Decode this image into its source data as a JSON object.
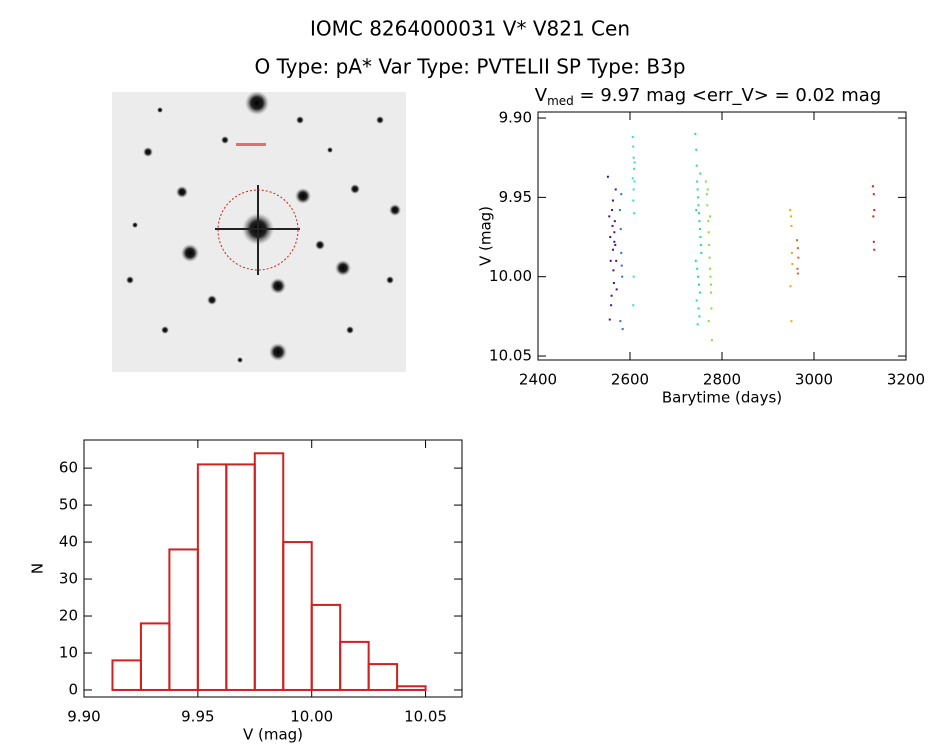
{
  "header": {
    "title": "IOMC 8264000031    V* V821 Cen",
    "subtitle": "O Type: pA*  Var Type: PVTELII  SP Type: B3p"
  },
  "chart_data": [
    {
      "type": "scatter",
      "title": "V",
      "title_subscript": "med",
      "title_rest": " = 9.97 mag <err_V> = 0.02 mag",
      "x_label": "Barytime (days)",
      "y_label": "V (mag)",
      "xlim": [
        2400,
        3200
      ],
      "xticks": [
        2400,
        2600,
        2800,
        3000,
        3200
      ],
      "ylim": [
        9.8962,
        10.0525
      ],
      "y_inverted": true,
      "yticks": [
        {
          "value": 9.9,
          "label": "9.90"
        },
        {
          "value": 9.95,
          "label": "9.95"
        },
        {
          "value": 10.0,
          "label": "10.00"
        },
        {
          "value": 10.05,
          "label": "10.05"
        }
      ],
      "series": [
        {
          "color": "#4b0f7a",
          "x": [
            2552,
            2555,
            2557,
            2558,
            2560,
            2561,
            2562,
            2563,
            2564,
            2565,
            2566,
            2567,
            2568,
            2569,
            2570,
            2556,
            2559,
            2563,
            2566,
            2571
          ],
          "values": [
            9.937,
            9.962,
            9.975,
            9.99,
            10.012,
            9.958,
            9.968,
            9.983,
            9.996,
            10.004,
            9.972,
            9.965,
            9.98,
            9.945,
            9.99,
            10.027,
            10.018,
            9.952,
            9.978,
            10.008
          ]
        },
        {
          "color": "#2f6fd0",
          "x": [
            2578,
            2580,
            2581,
            2582,
            2583,
            2584,
            2579,
            2581
          ],
          "values": [
            9.958,
            9.97,
            9.985,
            9.993,
            10.0,
            10.033,
            10.028,
            9.948
          ]
        },
        {
          "color": "#30d8e8",
          "x": [
            2606,
            2607,
            2608,
            2609,
            2610,
            2608,
            2607,
            2609,
            2606,
            2610,
            2608,
            2607
          ],
          "values": [
            9.912,
            9.918,
            9.925,
            9.932,
            9.94,
            9.945,
            9.952,
            9.96,
            9.938,
            9.928,
            10.0,
            10.018
          ]
        },
        {
          "color": "#20e090",
          "x": [
            2742,
            2744,
            2745,
            2746,
            2747,
            2748,
            2749,
            2750,
            2751,
            2752,
            2753,
            2754,
            2755,
            2743,
            2746,
            2748,
            2750,
            2752,
            2745,
            2749,
            2751,
            2747,
            2753,
            2744
          ],
          "values": [
            9.91,
            9.92,
            9.93,
            9.94,
            9.945,
            9.95,
            9.955,
            9.96,
            9.965,
            9.97,
            9.975,
            9.98,
            9.985,
            9.99,
            9.995,
            10.0,
            10.005,
            10.01,
            10.015,
            10.02,
            10.025,
            10.03,
            9.935,
            9.958
          ]
        },
        {
          "color": "#80e040",
          "x": [
            2765,
            2767,
            2768,
            2770,
            2771,
            2772,
            2773,
            2774,
            2775,
            2776,
            2777,
            2778,
            2769,
            2771,
            2774,
            2776
          ],
          "values": [
            9.94,
            9.948,
            9.955,
            9.965,
            9.972,
            9.98,
            9.988,
            9.995,
            10.0,
            10.01,
            10.02,
            10.04,
            9.945,
            10.028,
            9.962,
            10.005
          ]
        },
        {
          "color": "#e8b000",
          "x": [
            2948,
            2950,
            2951,
            2952,
            2953,
            2949,
            2951
          ],
          "values": [
            9.958,
            9.962,
            9.968,
            9.985,
            9.992,
            10.006,
            10.028
          ]
        },
        {
          "color": "#e06020",
          "x": [
            2963,
            2965,
            2966,
            2964,
            2965
          ],
          "values": [
            9.977,
            9.982,
            9.988,
            9.995,
            9.998
          ]
        },
        {
          "color": "#d02020",
          "x": [
            3128,
            3130,
            3131,
            3129,
            3130,
            3131
          ],
          "values": [
            9.943,
            9.948,
            9.958,
            9.962,
            9.978,
            9.983
          ]
        }
      ]
    },
    {
      "type": "histogram",
      "x_label": "V (mag)",
      "y_label": "N",
      "color": "#d02020",
      "bins": [
        9.9125,
        9.925,
        9.9375,
        9.95,
        9.9625,
        9.975,
        9.9875,
        10.0,
        10.0125,
        10.025,
        10.0375,
        10.05
      ],
      "values": [
        8,
        18,
        38,
        61,
        61,
        64,
        40,
        23,
        13,
        7,
        1
      ],
      "xlim": [
        9.9,
        10.066
      ],
      "xticks": [
        {
          "value": 9.9,
          "label": "9.90"
        },
        {
          "value": 9.95,
          "label": "9.95"
        },
        {
          "value": 10.0,
          "label": "10.00"
        },
        {
          "value": 10.05,
          "label": "10.05"
        }
      ],
      "ylim": [
        -1.9,
        67.6
      ],
      "yticks": [
        0,
        10,
        20,
        30,
        40,
        50,
        60
      ]
    }
  ]
}
